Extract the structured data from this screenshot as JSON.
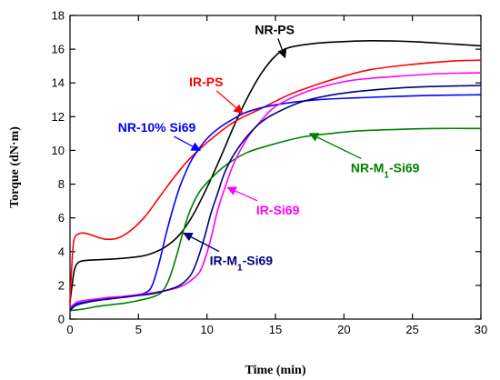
{
  "chart_data": {
    "type": "line",
    "xlabel": "Time (min)",
    "ylabel": "Torque (dN·m)",
    "xlim": [
      0,
      30
    ],
    "ylim": [
      0,
      18
    ],
    "xticks": [
      0,
      5,
      10,
      15,
      20,
      25,
      30
    ],
    "yticks": [
      0,
      2,
      4,
      6,
      8,
      10,
      12,
      14,
      16,
      18
    ],
    "grid": false,
    "series": [
      {
        "name": "NR-PS",
        "color": "#000000",
        "points": [
          [
            0,
            1.0
          ],
          [
            0.15,
            2.0
          ],
          [
            0.35,
            3.0
          ],
          [
            0.7,
            3.4
          ],
          [
            1.5,
            3.5
          ],
          [
            3,
            3.55
          ],
          [
            5,
            3.7
          ],
          [
            6,
            3.9
          ],
          [
            7,
            4.3
          ],
          [
            8,
            5.0
          ],
          [
            9,
            6.2
          ],
          [
            10,
            7.8
          ],
          [
            11,
            9.6
          ],
          [
            12,
            11.5
          ],
          [
            13,
            13.2
          ],
          [
            14,
            14.6
          ],
          [
            15,
            15.6
          ],
          [
            16,
            16.1
          ],
          [
            18,
            16.35
          ],
          [
            20,
            16.45
          ],
          [
            22,
            16.5
          ],
          [
            25,
            16.45
          ],
          [
            28,
            16.3
          ],
          [
            30,
            16.2
          ]
        ],
        "label": "NR-PS",
        "label_at": [
          13.5,
          16.9
        ],
        "arrow_to": [
          15.7,
          15.5
        ]
      },
      {
        "name": "IR-PS",
        "color": "#ff0000",
        "points": [
          [
            0,
            1.0
          ],
          [
            0.12,
            3.0
          ],
          [
            0.3,
            4.7
          ],
          [
            0.8,
            5.1
          ],
          [
            1.5,
            5.0
          ],
          [
            2.5,
            4.75
          ],
          [
            3.5,
            4.8
          ],
          [
            4.5,
            5.3
          ],
          [
            5.5,
            6.1
          ],
          [
            6.5,
            7.2
          ],
          [
            7.5,
            8.3
          ],
          [
            8.5,
            9.3
          ],
          [
            9.5,
            10.1
          ],
          [
            10.5,
            10.8
          ],
          [
            12,
            11.7
          ],
          [
            14,
            12.5
          ],
          [
            16,
            13.3
          ],
          [
            18,
            13.9
          ],
          [
            20,
            14.4
          ],
          [
            22,
            14.8
          ],
          [
            25,
            15.1
          ],
          [
            28,
            15.3
          ],
          [
            30,
            15.35
          ]
        ],
        "label": "IR-PS",
        "label_at": [
          8.7,
          13.8
        ],
        "arrow_to": [
          12.6,
          12.2
        ]
      },
      {
        "name": "NR-10% Si69",
        "color": "#0000ff",
        "points": [
          [
            0,
            0.6
          ],
          [
            0.5,
            0.9
          ],
          [
            1,
            1.0
          ],
          [
            2,
            1.15
          ],
          [
            3,
            1.25
          ],
          [
            4,
            1.35
          ],
          [
            5,
            1.45
          ],
          [
            5.6,
            1.6
          ],
          [
            6,
            2.0
          ],
          [
            6.5,
            3.3
          ],
          [
            7,
            5.0
          ],
          [
            7.5,
            6.5
          ],
          [
            8,
            7.8
          ],
          [
            8.5,
            8.8
          ],
          [
            9,
            9.6
          ],
          [
            10,
            10.7
          ],
          [
            11,
            11.4
          ],
          [
            12,
            11.9
          ],
          [
            13,
            12.3
          ],
          [
            15,
            12.7
          ],
          [
            18,
            13.0
          ],
          [
            22,
            13.15
          ],
          [
            26,
            13.25
          ],
          [
            30,
            13.3
          ]
        ],
        "label": "NR-10% Si69",
        "label_at": [
          3.5,
          11.1
        ],
        "arrow_to": [
          9.5,
          10.0
        ]
      },
      {
        "name": "NR-M1-Si69",
        "color": "#008000",
        "points": [
          [
            0,
            0.5
          ],
          [
            1,
            0.6
          ],
          [
            2,
            0.75
          ],
          [
            3,
            0.85
          ],
          [
            4,
            0.95
          ],
          [
            5,
            1.1
          ],
          [
            6,
            1.3
          ],
          [
            6.7,
            1.6
          ],
          [
            7.2,
            2.3
          ],
          [
            7.8,
            3.8
          ],
          [
            8.3,
            5.3
          ],
          [
            8.8,
            6.5
          ],
          [
            9.5,
            7.6
          ],
          [
            10.5,
            8.5
          ],
          [
            11.5,
            9.2
          ],
          [
            13,
            9.9
          ],
          [
            15,
            10.4
          ],
          [
            17,
            10.8
          ],
          [
            19,
            11.0
          ],
          [
            21,
            11.15
          ],
          [
            24,
            11.25
          ],
          [
            27,
            11.3
          ],
          [
            30,
            11.3
          ]
        ],
        "label": "NR-M1-Si69",
        "label_at": [
          20.5,
          8.7
        ],
        "arrow_to": [
          17.5,
          11.0
        ]
      },
      {
        "name": "IR-Si69",
        "color": "#ff00ff",
        "points": [
          [
            0,
            0.7
          ],
          [
            0.5,
            1.0
          ],
          [
            1,
            1.1
          ],
          [
            2,
            1.2
          ],
          [
            3,
            1.3
          ],
          [
            4,
            1.35
          ],
          [
            5,
            1.45
          ],
          [
            6,
            1.55
          ],
          [
            7,
            1.7
          ],
          [
            8,
            1.9
          ],
          [
            9,
            2.4
          ],
          [
            9.6,
            3.0
          ],
          [
            10.2,
            4.5
          ],
          [
            10.8,
            6.5
          ],
          [
            11.4,
            8.0
          ],
          [
            12,
            9.3
          ],
          [
            13,
            10.8
          ],
          [
            14,
            11.8
          ],
          [
            15,
            12.6
          ],
          [
            17,
            13.4
          ],
          [
            19,
            13.9
          ],
          [
            21,
            14.2
          ],
          [
            24,
            14.4
          ],
          [
            27,
            14.55
          ],
          [
            30,
            14.6
          ]
        ],
        "label": "IR-Si69",
        "label_at": [
          13.6,
          6.2
        ],
        "arrow_to": [
          11.5,
          7.8
        ]
      },
      {
        "name": "IR-M1-Si69",
        "color": "#000080",
        "points": [
          [
            0,
            0.5
          ],
          [
            0.4,
            0.8
          ],
          [
            1,
            0.95
          ],
          [
            2,
            1.1
          ],
          [
            3,
            1.2
          ],
          [
            4,
            1.3
          ],
          [
            5,
            1.4
          ],
          [
            6,
            1.5
          ],
          [
            7,
            1.7
          ],
          [
            8,
            2.0
          ],
          [
            8.8,
            2.6
          ],
          [
            9.3,
            3.5
          ],
          [
            9.8,
            4.8
          ],
          [
            10.3,
            6.3
          ],
          [
            10.8,
            7.5
          ],
          [
            11.3,
            8.7
          ],
          [
            12,
            9.8
          ],
          [
            13,
            10.9
          ],
          [
            14,
            11.7
          ],
          [
            15,
            12.2
          ],
          [
            17,
            12.9
          ],
          [
            20,
            13.4
          ],
          [
            24,
            13.7
          ],
          [
            27,
            13.8
          ],
          [
            30,
            13.85
          ]
        ],
        "label": "IR-M1-Si69",
        "label_at": [
          10.2,
          3.2
        ],
        "arrow_to": [
          8.3,
          5.1
        ]
      }
    ]
  }
}
